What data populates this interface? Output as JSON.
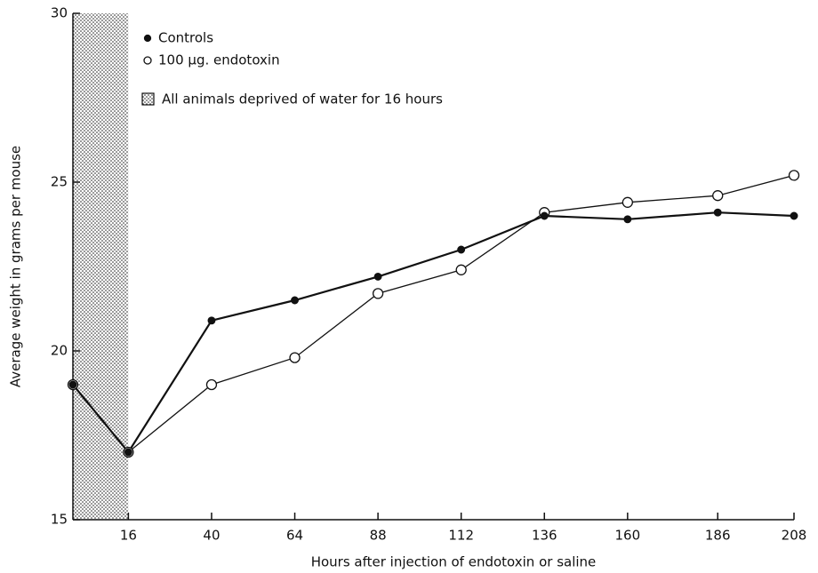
{
  "chart_data": {
    "type": "line",
    "x_label": "Hours after injection of endotoxin or saline",
    "y_label": "Average weight in grams per mouse",
    "x": [
      0,
      16,
      40,
      64,
      88,
      112,
      136,
      160,
      186,
      208
    ],
    "series": [
      {
        "name": "Controls",
        "color": "#111111",
        "marker": "filled",
        "values": [
          19.0,
          17.0,
          20.9,
          21.5,
          22.2,
          23.0,
          24.0,
          23.9,
          24.1,
          24.0
        ]
      },
      {
        "name": "100 μg. endotoxin",
        "color": "#111111",
        "marker": "open",
        "values": [
          19.0,
          17.0,
          19.0,
          19.8,
          21.7,
          22.4,
          24.1,
          24.4,
          24.6,
          25.2
        ]
      }
    ],
    "shaded_xrange": [
      0,
      16
    ],
    "shade_label": "All animals deprived of water for 16 hours",
    "xlim": [
      0,
      208
    ],
    "xticks": [
      16,
      40,
      64,
      88,
      112,
      136,
      160,
      186,
      208
    ],
    "ylim": [
      15,
      30
    ],
    "yticks": [
      15,
      20,
      25,
      30
    ],
    "grid": false
  }
}
